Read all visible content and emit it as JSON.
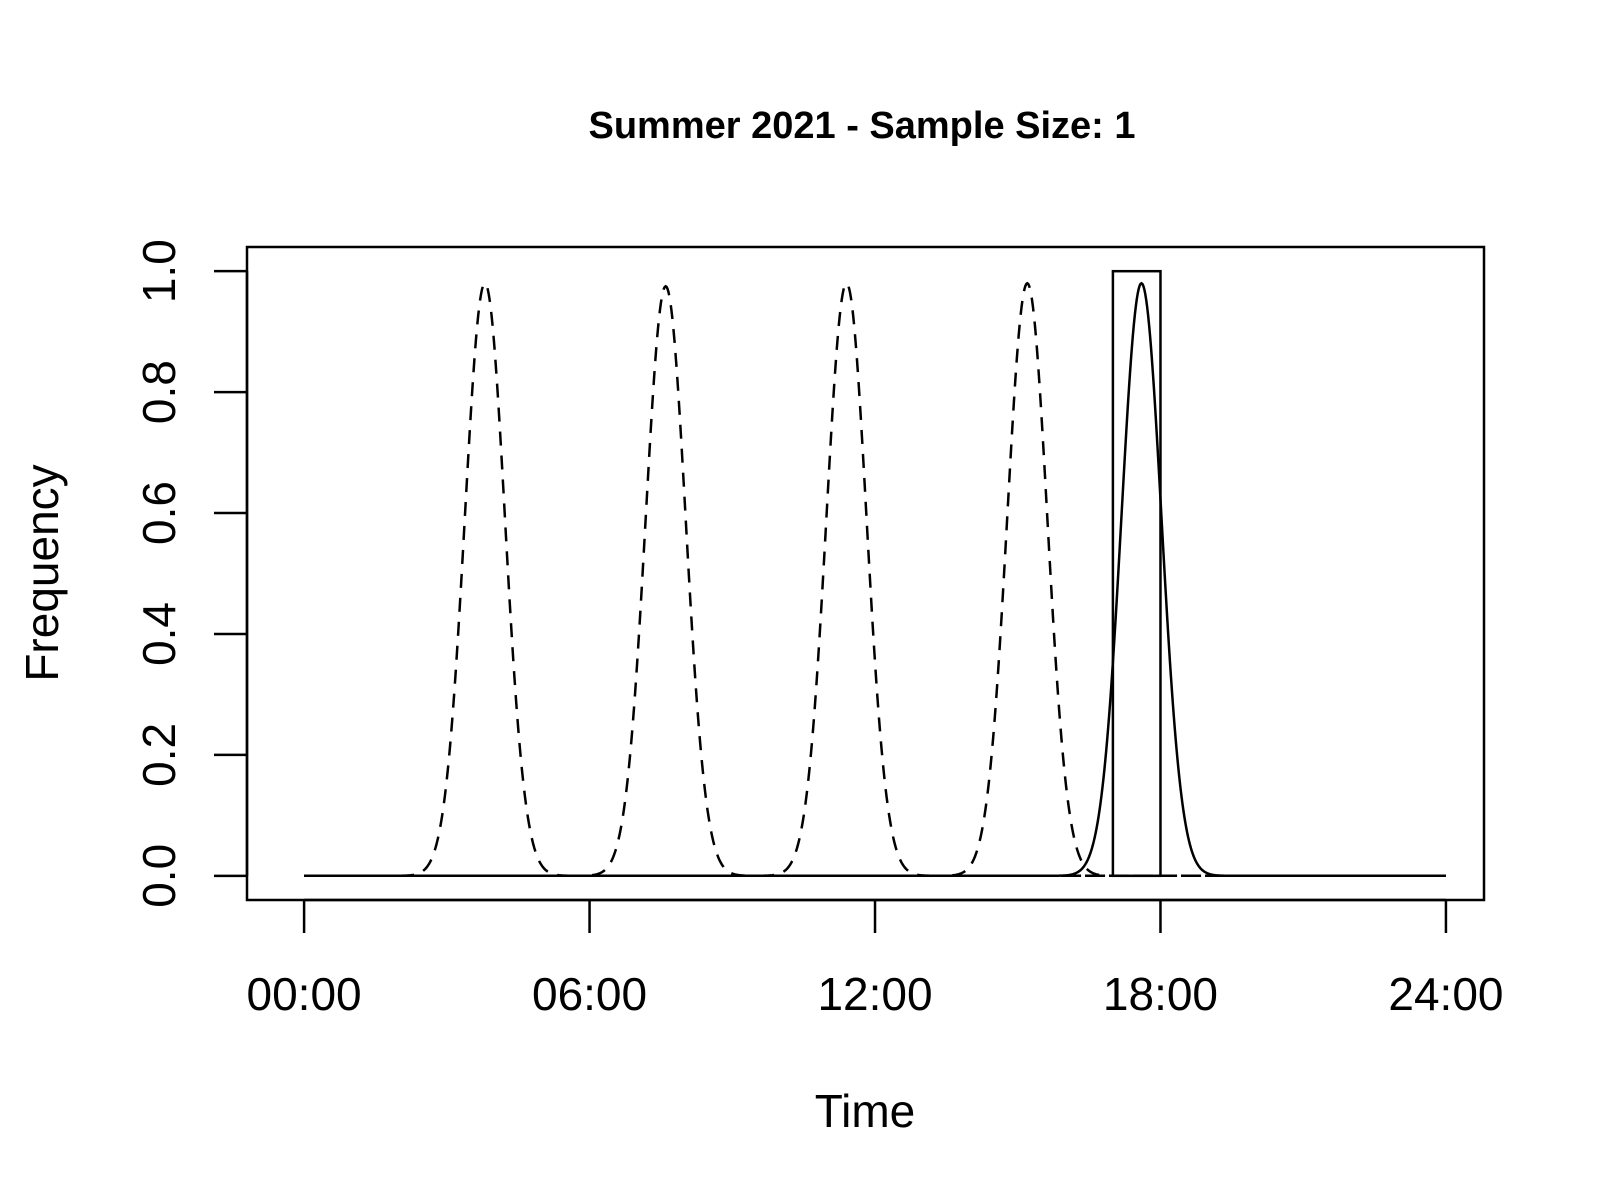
{
  "chart_data": {
    "type": "line",
    "title": "Summer 2021 - Sample Size: 1",
    "xlabel": "Time",
    "ylabel": "Frequency",
    "xlim": [
      -1.2,
      24.8
    ],
    "ylim": [
      -0.04,
      1.04
    ],
    "x_ticks": [
      {
        "value": 0,
        "label": "00:00"
      },
      {
        "value": 6,
        "label": "06:00"
      },
      {
        "value": 12,
        "label": "12:00"
      },
      {
        "value": 18,
        "label": "18:00"
      },
      {
        "value": 24,
        "label": "24:00"
      }
    ],
    "y_ticks": [
      {
        "value": 0.0,
        "label": "0.0"
      },
      {
        "value": 0.2,
        "label": "0.2"
      },
      {
        "value": 0.4,
        "label": "0.4"
      },
      {
        "value": 0.6,
        "label": "0.6"
      },
      {
        "value": 0.8,
        "label": "0.8"
      },
      {
        "value": 1.0,
        "label": "1.0"
      }
    ],
    "histogram_bars": [
      {
        "x_start": 17,
        "x_end": 18,
        "value": 1.0
      }
    ],
    "series": [
      {
        "style": "dashed",
        "peak_x": 3.8,
        "peak_y": 0.98,
        "sd": 0.42,
        "x_range": [
          0,
          24
        ]
      },
      {
        "style": "dashed",
        "peak_x": 7.6,
        "peak_y": 0.975,
        "sd": 0.42,
        "x_range": [
          0,
          24
        ]
      },
      {
        "style": "dashed",
        "peak_x": 11.4,
        "peak_y": 0.98,
        "sd": 0.42,
        "x_range": [
          0,
          24
        ]
      },
      {
        "style": "dashed",
        "peak_x": 15.2,
        "peak_y": 0.98,
        "sd": 0.42,
        "x_range": [
          0,
          24
        ]
      },
      {
        "style": "solid",
        "peak_x": 17.6,
        "peak_y": 0.98,
        "sd": 0.42,
        "x_range": [
          0,
          24
        ]
      }
    ],
    "grid": false,
    "legend": "none"
  }
}
